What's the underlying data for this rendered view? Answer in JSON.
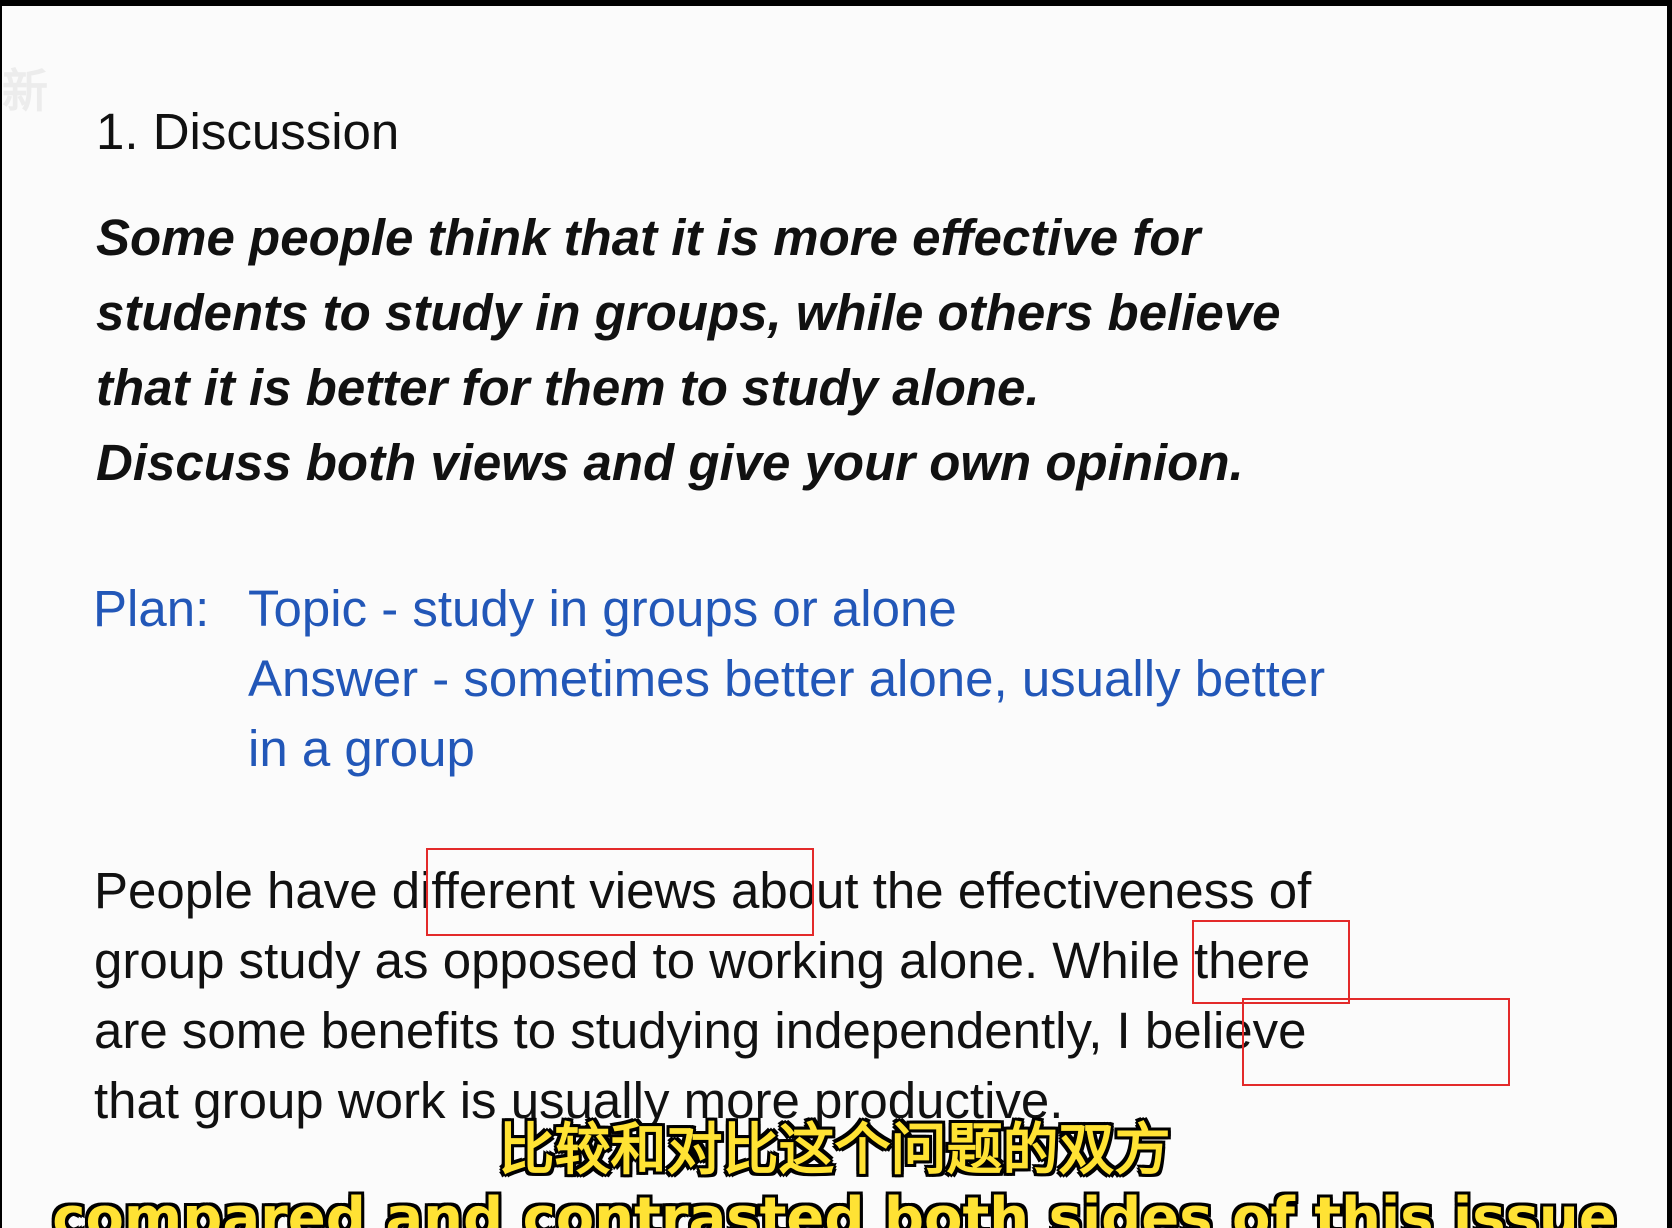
{
  "document": {
    "heading": "1. Discussion",
    "question_lines": [
      "Some people think that it is more effective for",
      "students to study in groups, while others believe",
      "that it is better for them to study alone.",
      "Discuss both views and give your own opinion."
    ],
    "plan": {
      "label": "Plan:",
      "lines": [
        "Topic - study in groups or alone",
        "Answer - sometimes better alone, usually better",
        "in a group"
      ]
    },
    "essay": {
      "line1": {
        "pre": "People have ",
        "hl": "different views",
        "post": " about the effectiveness of"
      },
      "line2": {
        "pre": "group study as opposed to working alone. ",
        "hl": "While",
        "post": " there"
      },
      "line3": {
        "pre": "are some benefits to studying independently",
        "hl": ", I believe",
        "post": ""
      },
      "line4": "that group work is usually more productive."
    },
    "highlight_color": "#e32a2a",
    "plan_color": "#2257b8"
  },
  "subtitles": {
    "chinese": "比较和对比这个问题的双方",
    "english": "compared and contrasted both sides of this issue",
    "color": "#ffe234"
  },
  "watermark": "新"
}
